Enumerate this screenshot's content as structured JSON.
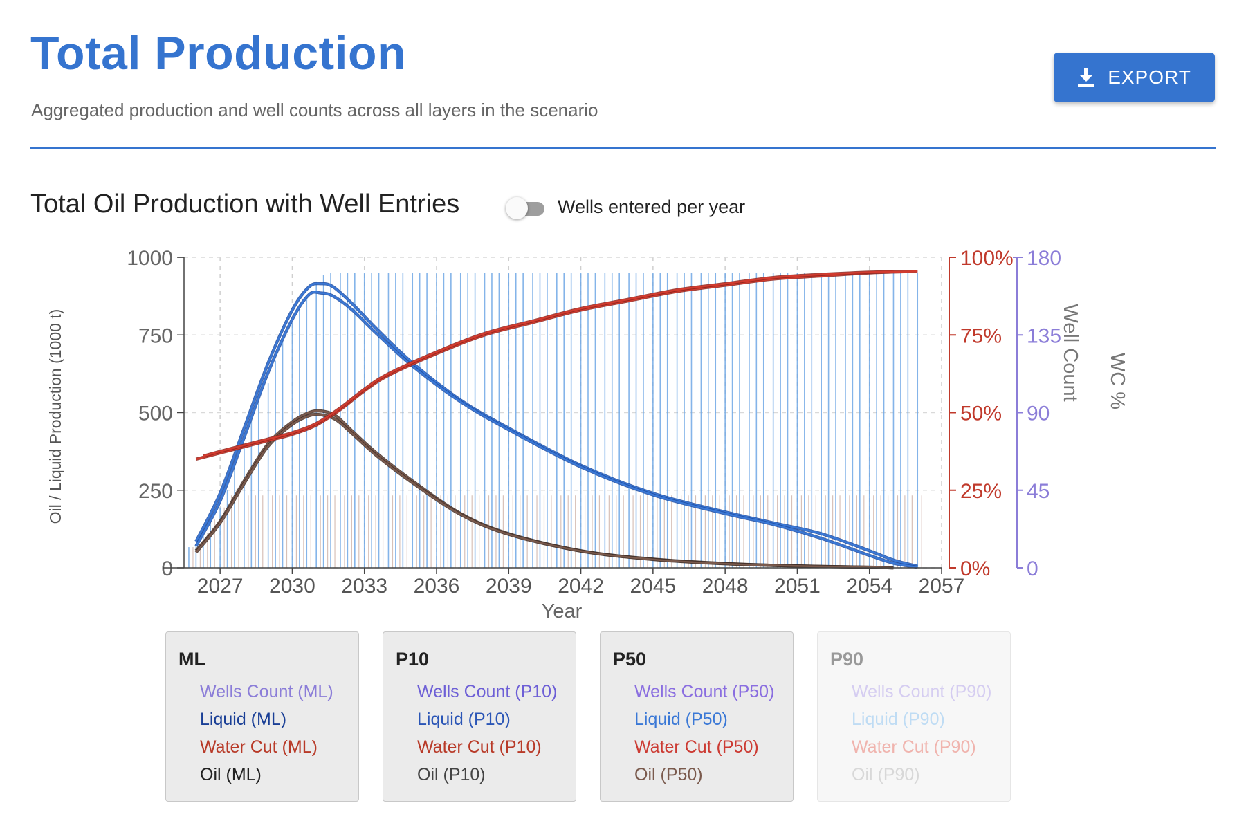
{
  "header": {
    "title": "Total Production",
    "subtitle": "Aggregated production and well counts across all layers in the scenario",
    "export_label": "EXPORT"
  },
  "chart_section": {
    "title": "Total Oil Production with Well Entries",
    "toggle_label": "Wells entered per year",
    "toggle_on": false
  },
  "colors": {
    "accent": "#3574cf",
    "liquid": "#3a78d6",
    "oil": "#7a5a4d",
    "water_cut": "#d13b2f",
    "wells": "#8b7dd8",
    "well_bars": "#6fa8e6",
    "oil_bars": "#c7a79b"
  },
  "chart_data": {
    "type": "line",
    "xlabel": "Year",
    "ylabel_left": "Oil / Liquid Production (1000 t)",
    "ylabel_right_1": "Well Count",
    "ylabel_right_2": "WC %",
    "xlim": [
      2025.5,
      2057
    ],
    "x_ticks": [
      2027,
      2030,
      2033,
      2036,
      2039,
      2042,
      2045,
      2048,
      2051,
      2054,
      2057
    ],
    "y_left": {
      "lim": [
        0,
        1000
      ],
      "ticks": [
        0,
        250,
        500,
        750,
        1000
      ]
    },
    "y_wc": {
      "lim": [
        0,
        100
      ],
      "ticks": [
        "0%",
        "25%",
        "50%",
        "75%",
        "100%"
      ]
    },
    "y_wells": {
      "lim": [
        0,
        180
      ],
      "ticks": [
        0,
        45,
        90,
        135,
        180
      ]
    },
    "grid": true,
    "series": [
      {
        "name": "Liquid (ML)",
        "kind": "liquid",
        "x": [
          2026,
          2027,
          2028,
          2029,
          2030,
          2030.7,
          2031.2,
          2031.7,
          2032.5,
          2033.5,
          2035,
          2037,
          2039,
          2042,
          2045,
          2048,
          2050,
          2052,
          2054,
          2055,
          2056
        ],
        "y": [
          85,
          240,
          450,
          660,
          830,
          905,
          915,
          905,
          850,
          770,
          660,
          540,
          450,
          330,
          240,
          180,
          145,
          110,
          55,
          25,
          5
        ]
      },
      {
        "name": "Liquid (P10)",
        "kind": "liquid",
        "x": [
          2026,
          2027,
          2028,
          2029,
          2030,
          2030.7,
          2031.2,
          2031.7,
          2032.5,
          2033.5,
          2035,
          2037,
          2039,
          2042,
          2045,
          2048,
          2050,
          2052,
          2054,
          2055,
          2056
        ],
        "y": [
          70,
          215,
          420,
          630,
          800,
          880,
          885,
          875,
          830,
          755,
          650,
          535,
          445,
          325,
          235,
          175,
          140,
          95,
          40,
          15,
          2
        ]
      },
      {
        "name": "Oil (ML)",
        "kind": "oil",
        "x": [
          2026,
          2027,
          2028,
          2029,
          2030,
          2030.7,
          2031.2,
          2031.8,
          2032.5,
          2033.5,
          2035,
          2037,
          2039,
          2042,
          2045,
          2048,
          2051,
          2054,
          2055
        ],
        "y": [
          55,
          150,
          280,
          400,
          470,
          500,
          505,
          490,
          440,
          370,
          280,
          175,
          110,
          55,
          28,
          14,
          6,
          2,
          0
        ]
      },
      {
        "name": "Oil (P10)",
        "kind": "oil",
        "x": [
          2026,
          2027,
          2028,
          2029,
          2030,
          2030.7,
          2031.2,
          2031.8,
          2032.5,
          2033.5,
          2035,
          2037,
          2039,
          2042,
          2045,
          2048,
          2051,
          2054,
          2055
        ],
        "y": [
          50,
          145,
          272,
          392,
          462,
          490,
          493,
          478,
          432,
          362,
          274,
          172,
          108,
          54,
          27,
          13,
          6,
          2,
          0
        ]
      },
      {
        "name": "Water Cut (ML)",
        "kind": "wc",
        "x": [
          2026,
          2027,
          2028,
          2029,
          2030,
          2031,
          2032,
          2033,
          2034,
          2036,
          2038,
          2040,
          2042,
          2044,
          2046,
          2048,
          2050,
          2052,
          2054,
          2056
        ],
        "y": [
          35,
          37,
          39,
          41,
          43,
          46,
          51,
          57,
          62,
          69,
          75,
          79,
          83,
          86,
          89,
          91,
          93,
          94,
          95,
          95.5
        ]
      },
      {
        "name": "Water Cut (P10)",
        "kind": "wc",
        "x": [
          2026.3,
          2027,
          2028,
          2029,
          2030,
          2031,
          2032,
          2033,
          2034,
          2036,
          2038,
          2040,
          2042,
          2044,
          2046,
          2048,
          2050,
          2052,
          2054,
          2055
        ],
        "y": [
          36,
          37.5,
          39.5,
          41.5,
          43.5,
          46.5,
          51.5,
          57.5,
          62.5,
          69.5,
          75.5,
          79.5,
          83.5,
          86.5,
          89.5,
          91.5,
          93.5,
          94.5,
          95.2,
          95.4
        ]
      }
    ],
    "wells_count": {
      "x": [
        2025.7,
        2026,
        2026.3,
        2026.6,
        2027,
        2027.3,
        2027.6,
        2028,
        2028.3,
        2028.6,
        2029,
        2029.3,
        2029.6,
        2030,
        2030.3,
        2030.6,
        2031,
        2031.3,
        2031.6,
        2032,
        2032.3,
        2032.6,
        2033,
        2033.3,
        2033.6,
        2034,
        2034.3,
        2034.6,
        2035,
        2035.3,
        2035.6,
        2036,
        2036.3,
        2036.6,
        2037,
        2037.3,
        2037.6,
        2038,
        2038.3,
        2038.6,
        2039,
        2039.3,
        2039.6,
        2040,
        2040.3,
        2040.6,
        2041,
        2041.3,
        2041.6,
        2042,
        2042.3,
        2042.6,
        2043,
        2043.3,
        2043.6,
        2044,
        2044.3,
        2044.6,
        2045,
        2045.3,
        2045.6,
        2046,
        2046.3,
        2046.6,
        2047,
        2047.3,
        2047.6,
        2048,
        2048.3,
        2048.6,
        2049,
        2049.3,
        2049.6,
        2050,
        2050.3,
        2050.6,
        2051,
        2051.3,
        2051.6,
        2052,
        2052.3,
        2052.6,
        2053,
        2053.3,
        2053.6,
        2054,
        2054.3,
        2054.6,
        2055,
        2055.3,
        2055.6,
        2056
      ],
      "y": [
        12,
        14,
        20,
        28,
        35,
        45,
        58,
        70,
        85,
        96,
        107,
        120,
        132,
        142,
        150,
        158,
        166,
        170,
        171,
        171,
        171,
        171,
        171,
        171,
        171,
        171,
        171,
        171,
        171,
        171,
        171,
        171,
        171,
        171,
        171,
        171,
        171,
        171,
        171,
        171,
        171,
        171,
        171,
        171,
        171,
        171,
        171,
        171,
        171,
        171,
        171,
        171,
        171,
        171,
        171,
        171,
        171,
        171,
        171,
        171,
        171,
        171,
        171,
        171,
        171,
        171,
        171,
        171,
        171,
        171,
        171,
        171,
        171,
        171,
        171,
        171,
        171,
        171,
        171,
        171,
        171,
        171,
        171,
        171,
        171,
        171,
        171,
        171,
        171,
        171,
        171,
        171
      ]
    }
  },
  "legend": [
    {
      "title": "ML",
      "dim": false,
      "items": [
        {
          "label": "Wells Count (ML)",
          "color": "#8b7dd8"
        },
        {
          "label": "Liquid (ML)",
          "color": "#1a3f96"
        },
        {
          "label": "Water Cut (ML)",
          "color": "#b83a28"
        },
        {
          "label": "Oil (ML)",
          "color": "#222222"
        }
      ]
    },
    {
      "title": "P10",
      "dim": false,
      "items": [
        {
          "label": "Wells Count (P10)",
          "color": "#6d5fd6"
        },
        {
          "label": "Liquid (P10)",
          "color": "#2a55b6"
        },
        {
          "label": "Water Cut (P10)",
          "color": "#b83a28"
        },
        {
          "label": "Oil (P10)",
          "color": "#444444"
        }
      ]
    },
    {
      "title": "P50",
      "dim": false,
      "items": [
        {
          "label": "Wells Count (P50)",
          "color": "#8a6ee0"
        },
        {
          "label": "Liquid (P50)",
          "color": "#3a78d6"
        },
        {
          "label": "Water Cut (P50)",
          "color": "#cc3b33"
        },
        {
          "label": "Oil (P50)",
          "color": "#7a5a4d"
        }
      ]
    },
    {
      "title": "P90",
      "dim": true,
      "items": [
        {
          "label": "Wells Count (P90)",
          "color": "#d5cdf1"
        },
        {
          "label": "Liquid (P90)",
          "color": "#bfdcf4"
        },
        {
          "label": "Water Cut (P90)",
          "color": "#f0b4ae"
        },
        {
          "label": "Oil (P90)",
          "color": "#d8d8d8"
        }
      ]
    }
  ]
}
